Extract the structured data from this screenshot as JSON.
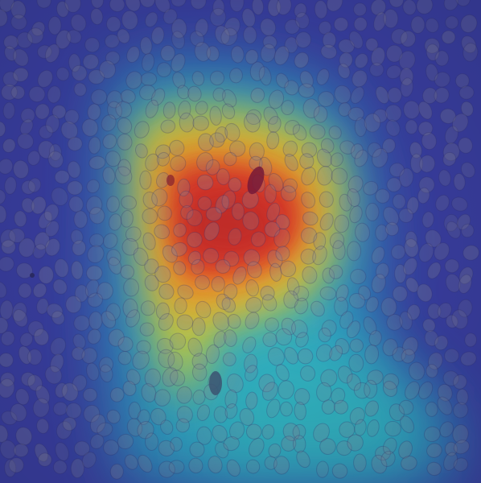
{
  "image": {
    "type": "heatmap-overlay",
    "subject": "cells",
    "colormap": [
      "#3b3fb0",
      "#3f79d6",
      "#34b8c8",
      "#e6d23a",
      "#f08a2a",
      "#d8322a"
    ],
    "colors": {
      "background": "#3a3f9e",
      "cell": "#8a8aa0",
      "hot": "#d8322a",
      "warm": "#f08a2a",
      "mid": "#e6d23a",
      "cool": "#34b8c8",
      "cold": "#3b3fb0"
    }
  }
}
